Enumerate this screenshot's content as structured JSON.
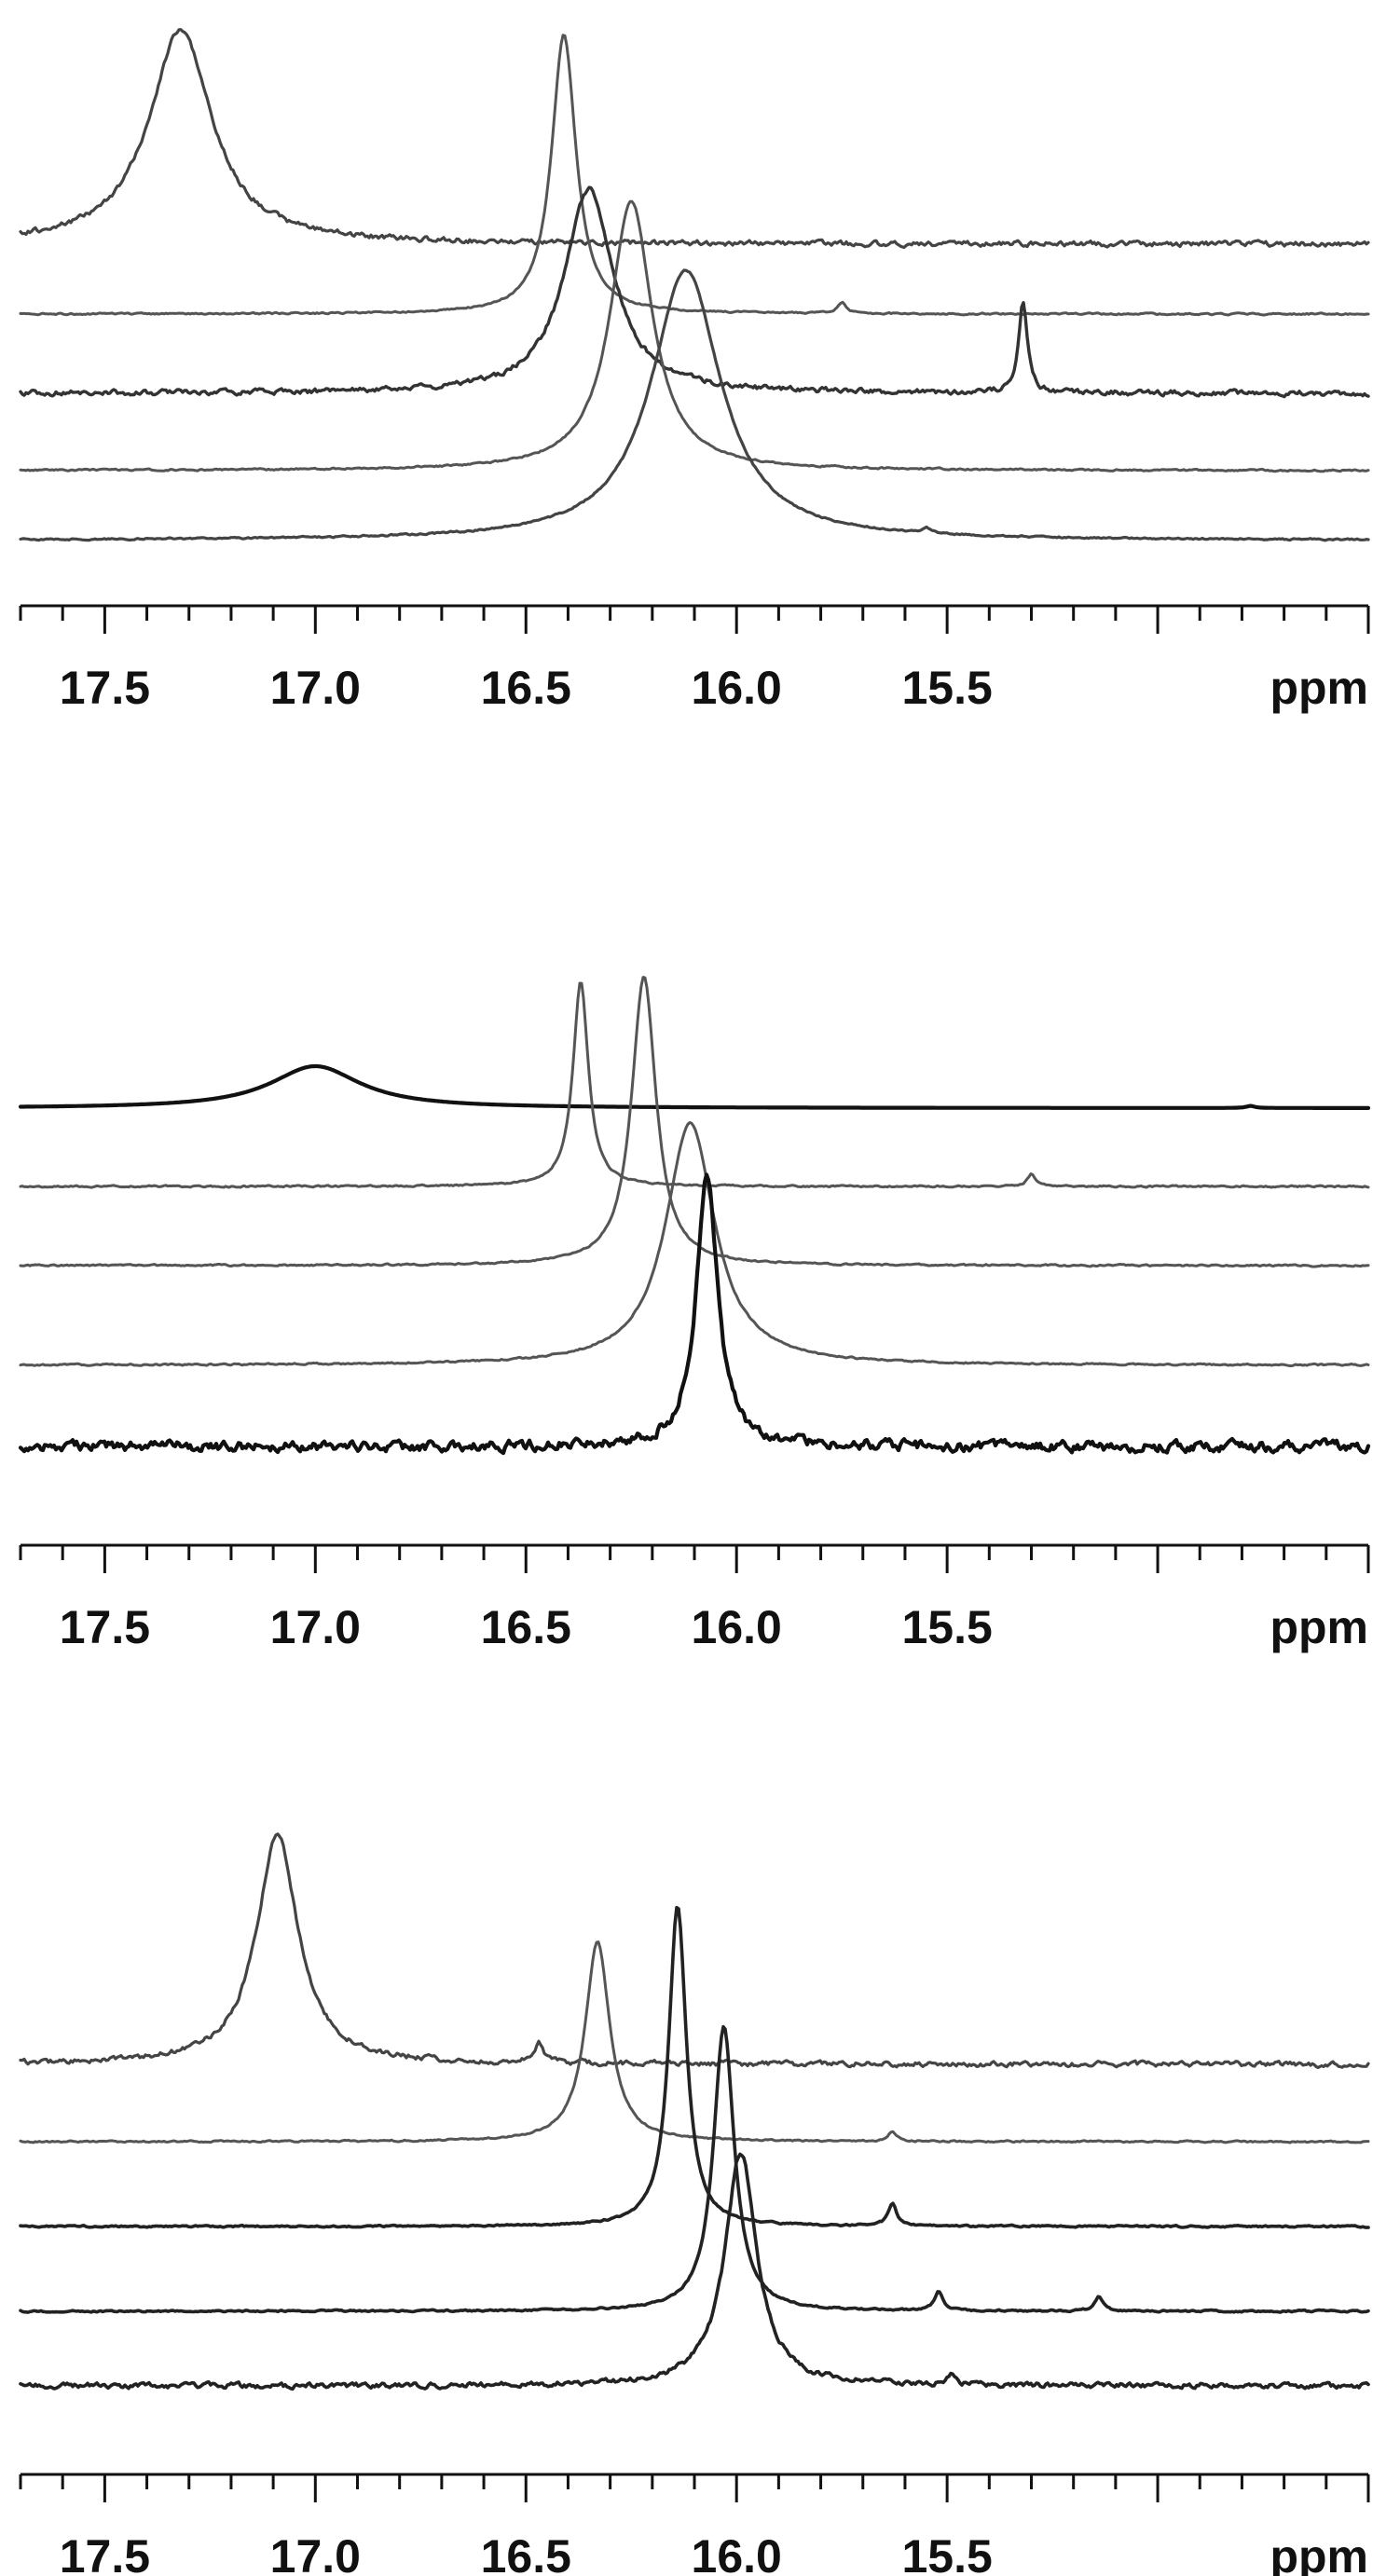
{
  "chart_data": [
    {
      "type": "line",
      "title": "",
      "xlabel": "ppm",
      "ylabel": "",
      "x_reversed": true,
      "x_ticks": [
        "17.5",
        "17.0",
        "16.5",
        "16.0",
        "15.5"
      ],
      "xlim": [
        17.7,
        14.5
      ],
      "grid": false,
      "legend": "none",
      "stack": "vertical offset, top to bottom",
      "series": [
        {
          "peak_ppm": 17.32,
          "width_ppm": 0.09,
          "amplitude": 1.0,
          "noise": "medium",
          "color": "#444444",
          "minor_peaks": []
        },
        {
          "peak_ppm": 16.41,
          "width_ppm": 0.035,
          "amplitude": 1.0,
          "noise": "low",
          "color": "#555555",
          "minor_peaks": [
            {
              "ppm": 15.75,
              "amplitude": 0.04
            }
          ]
        },
        {
          "peak_ppm": 16.35,
          "width_ppm": 0.07,
          "amplitude": 1.0,
          "noise": "medium",
          "color": "#333333",
          "minor_peaks": [
            {
              "ppm": 15.32,
              "amplitude": 0.45
            }
          ]
        },
        {
          "peak_ppm": 16.25,
          "width_ppm": 0.06,
          "amplitude": 1.0,
          "noise": "low",
          "color": "#555555",
          "minor_peaks": []
        },
        {
          "peak_ppm": 16.12,
          "width_ppm": 0.1,
          "amplitude": 1.0,
          "noise": "low",
          "color": "#444444",
          "minor_peaks": [
            {
              "ppm": 15.55,
              "amplitude": 0.02
            }
          ]
        }
      ]
    },
    {
      "type": "line",
      "title": "",
      "xlabel": "ppm",
      "ylabel": "",
      "x_reversed": true,
      "x_ticks": [
        "17.5",
        "17.0",
        "16.5",
        "16.0",
        "15.5"
      ],
      "xlim": [
        17.7,
        14.5
      ],
      "grid": false,
      "legend": "none",
      "stack": "vertical offset, top to bottom",
      "series": [
        {
          "peak_ppm": 17.0,
          "width_ppm": 0.13,
          "amplitude": 1.0,
          "noise": "none",
          "color": "#111111",
          "minor_peaks": [
            {
              "ppm": 14.78,
              "amplitude": 0.05
            }
          ]
        },
        {
          "peak_ppm": 16.37,
          "width_ppm": 0.022,
          "amplitude": 1.0,
          "noise": "low",
          "color": "#555555",
          "minor_peaks": [
            {
              "ppm": 15.3,
              "amplitude": 0.06
            }
          ]
        },
        {
          "peak_ppm": 16.22,
          "width_ppm": 0.035,
          "amplitude": 1.0,
          "noise": "low",
          "color": "#555555",
          "minor_peaks": []
        },
        {
          "peak_ppm": 16.11,
          "width_ppm": 0.07,
          "amplitude": 1.0,
          "noise": "low",
          "color": "#555555",
          "minor_peaks": []
        },
        {
          "peak_ppm": 16.07,
          "width_ppm": 0.03,
          "amplitude": 1.0,
          "noise": "high",
          "color": "#111111",
          "minor_peaks": []
        }
      ]
    },
    {
      "type": "line",
      "title": "",
      "xlabel": "ppm",
      "ylabel": "",
      "x_reversed": true,
      "x_ticks": [
        "17.5",
        "17.0",
        "16.5",
        "16.0",
        "15.5"
      ],
      "xlim": [
        17.7,
        14.5
      ],
      "grid": false,
      "legend": "none",
      "stack": "vertical offset, top to bottom",
      "series": [
        {
          "peak_ppm": 17.09,
          "width_ppm": 0.06,
          "amplitude": 1.0,
          "noise": "medium",
          "color": "#444444",
          "minor_peaks": [
            {
              "ppm": 16.47,
              "amplitude": 0.09
            }
          ]
        },
        {
          "peak_ppm": 16.33,
          "width_ppm": 0.035,
          "amplitude": 1.0,
          "noise": "low",
          "color": "#555555",
          "minor_peaks": [
            {
              "ppm": 15.63,
              "amplitude": 0.05
            }
          ]
        },
        {
          "peak_ppm": 16.14,
          "width_ppm": 0.025,
          "amplitude": 1.0,
          "noise": "low",
          "color": "#222222",
          "minor_peaks": [
            {
              "ppm": 15.63,
              "amplitude": 0.07
            }
          ]
        },
        {
          "peak_ppm": 16.03,
          "width_ppm": 0.03,
          "amplitude": 1.0,
          "noise": "low",
          "color": "#222222",
          "minor_peaks": [
            {
              "ppm": 15.52,
              "amplitude": 0.07
            },
            {
              "ppm": 15.14,
              "amplitude": 0.05
            }
          ]
        },
        {
          "peak_ppm": 15.99,
          "width_ppm": 0.045,
          "amplitude": 1.0,
          "noise": "medium",
          "color": "#222222",
          "minor_peaks": [
            {
              "ppm": 15.49,
              "amplitude": 0.04
            }
          ]
        }
      ]
    }
  ]
}
